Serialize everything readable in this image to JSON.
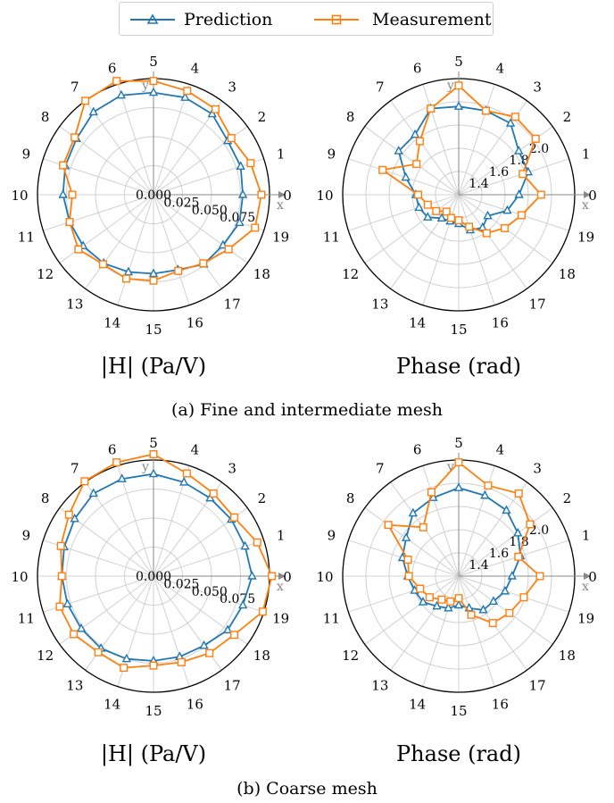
{
  "legend": {
    "prediction_label": "Prediction",
    "measurement_label": "Measurement"
  },
  "colors": {
    "prediction": "#1f77b4",
    "measurement": "#ff7f0e"
  },
  "captions": {
    "a": "(a) Fine and intermediate mesh",
    "b": "(b) Coarse mesh"
  },
  "chart_data": [
    {
      "type": "polar-line",
      "panel": "a-left",
      "xlabel": "|H| (Pa/V)",
      "angle_labels": [
        "0",
        "1",
        "2",
        "3",
        "4",
        "5",
        "6",
        "7",
        "8",
        "9",
        "10",
        "11",
        "12",
        "13",
        "14",
        "15",
        "16",
        "17",
        "18",
        "19"
      ],
      "axis_markers": {
        "x": "x",
        "y": "y"
      },
      "rlim": [
        0,
        0.1
      ],
      "rticks": [
        "0.000",
        "0.025",
        "0.050",
        "0.075"
      ],
      "rtick_values": [
        0,
        0.025,
        0.05,
        0.075
      ],
      "series": [
        {
          "name": "Prediction",
          "marker": "triangle",
          "values": [
            0.077,
            0.079,
            0.079,
            0.086,
            0.088,
            0.088,
            0.09,
            0.088,
            0.082,
            0.08,
            0.078,
            0.076,
            0.075,
            0.073,
            0.07,
            0.068,
            0.068,
            0.074,
            0.074,
            0.078
          ]
        },
        {
          "name": "Measurement",
          "marker": "square",
          "values": [
            0.093,
            0.088,
            0.083,
            0.091,
            0.094,
            0.098,
            0.103,
            0.1,
            0.084,
            0.082,
            0.07,
            0.076,
            0.08,
            0.074,
            0.076,
            0.074,
            0.069,
            0.073,
            0.08,
            0.092
          ]
        }
      ]
    },
    {
      "type": "polar-line",
      "panel": "a-right",
      "xlabel": "Phase (rad)",
      "angle_labels": [
        "0",
        "1",
        "2",
        "3",
        "4",
        "5",
        "6",
        "7",
        "8",
        "9",
        "10",
        "11",
        "12",
        "13",
        "14",
        "15",
        "16",
        "17",
        "18",
        "19"
      ],
      "axis_markers": {
        "x": "x",
        "y": "y"
      },
      "rlim": [
        1.2,
        2.2
      ],
      "rticks": [
        "1.4",
        "1.6",
        "1.8",
        "2.0"
      ],
      "rtick_values": [
        1.4,
        1.6,
        1.8,
        2.0
      ],
      "series": [
        {
          "name": "Prediction",
          "marker": "triangle",
          "values": [
            1.72,
            1.83,
            1.84,
            1.96,
            1.96,
            1.96,
            1.98,
            1.84,
            1.84,
            1.68,
            1.57,
            1.56,
            1.53,
            1.45,
            1.44,
            1.45,
            1.52,
            1.55,
            1.51,
            1.64
          ]
        },
        {
          "name": "Measurement",
          "marker": "square",
          "values": [
            1.91,
            1.78,
            2.02,
            2.03,
            1.96,
            2.14,
            1.98,
            1.77,
            1.65,
            1.89,
            1.55,
            1.48,
            1.44,
            1.38,
            1.41,
            1.42,
            1.49,
            1.61,
            1.69,
            1.77
          ]
        }
      ]
    },
    {
      "type": "polar-line",
      "panel": "b-left",
      "xlabel": "|H| (Pa/V)",
      "angle_labels": [
        "0",
        "1",
        "2",
        "3",
        "4",
        "5",
        "6",
        "7",
        "8",
        "9",
        "10",
        "11",
        "12",
        "13",
        "14",
        "15",
        "16",
        "17",
        "18",
        "19"
      ],
      "axis_markers": {
        "x": "x",
        "y": "y"
      },
      "rlim": [
        0,
        0.1
      ],
      "rticks": [
        "0.000",
        "0.025",
        "0.050",
        "0.075"
      ],
      "rtick_values": [
        0,
        0.025,
        0.05,
        0.075
      ],
      "series": [
        {
          "name": "Prediction",
          "marker": "triangle",
          "values": [
            0.085,
            0.083,
            0.083,
            0.083,
            0.085,
            0.088,
            0.088,
            0.088,
            0.084,
            0.081,
            0.079,
            0.078,
            0.077,
            0.077,
            0.075,
            0.073,
            0.073,
            0.074,
            0.079,
            0.081
          ]
        },
        {
          "name": "Measurement",
          "marker": "square",
          "values": [
            0.102,
            0.094,
            0.086,
            0.088,
            0.093,
            0.105,
            0.103,
            0.101,
            0.09,
            0.084,
            0.079,
            0.085,
            0.085,
            0.081,
            0.083,
            0.077,
            0.078,
            0.082,
            0.086,
            0.099
          ]
        }
      ]
    },
    {
      "type": "polar-line",
      "panel": "b-right",
      "xlabel": "Phase (rad)",
      "angle_labels": [
        "0",
        "1",
        "2",
        "3",
        "4",
        "5",
        "6",
        "7",
        "8",
        "9",
        "10",
        "11",
        "12",
        "13",
        "14",
        "15",
        "16",
        "17",
        "18",
        "19"
      ],
      "axis_markers": {
        "x": "x",
        "y": "y"
      },
      "rlim": [
        1.2,
        2.2
      ],
      "rticks": [
        "1.4",
        "1.6",
        "1.8",
        "2.0"
      ],
      "rtick_values": [
        1.4,
        1.6,
        1.8,
        2.0
      ],
      "series": [
        {
          "name": "Prediction",
          "marker": "triangle",
          "values": [
            1.66,
            1.76,
            1.83,
            1.9,
            1.93,
            1.96,
            1.91,
            1.87,
            1.76,
            1.71,
            1.64,
            1.6,
            1.58,
            1.52,
            1.49,
            1.45,
            1.49,
            1.56,
            1.57,
            1.62
          ]
        },
        {
          "name": "Measurement",
          "marker": "square",
          "values": [
            1.9,
            1.74,
            1.96,
            2.08,
            2.02,
            2.18,
            1.96,
            1.72,
            1.95,
            1.66,
            1.63,
            1.55,
            1.51,
            1.45,
            1.43,
            1.39,
            1.55,
            1.7,
            1.74,
            1.79
          ]
        }
      ]
    }
  ]
}
